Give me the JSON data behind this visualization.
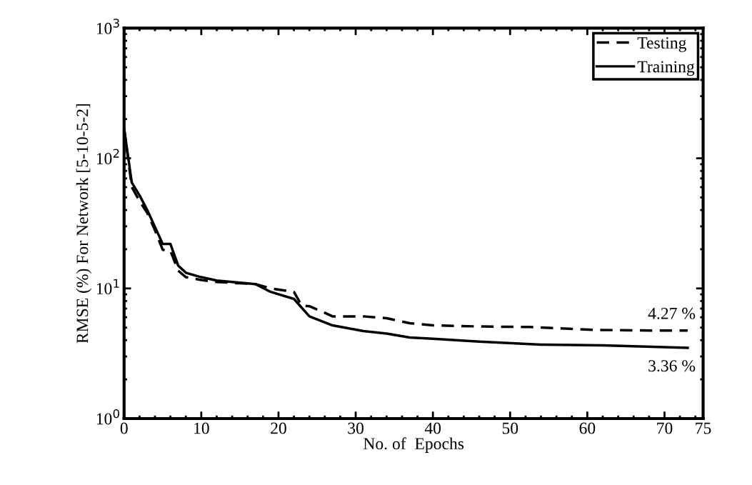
{
  "chart_data": {
    "type": "line",
    "xlabel": "No. of  Epochs",
    "ylabel": "RMSE (%) For Network [5-10-5-2]",
    "log": "y",
    "xlim": [
      0,
      75
    ],
    "xticks": [
      0,
      10,
      20,
      30,
      40,
      50,
      60,
      70,
      75
    ],
    "ylim": [
      1,
      1000
    ],
    "yticks": [
      {
        "value": 1,
        "label": "10$^{0}$"
      },
      {
        "value": 10,
        "label": "10$^{1}$"
      },
      {
        "value": 100,
        "label": "10$^{2}$"
      },
      {
        "value": 1000,
        "label": "10$^{3}$"
      }
    ],
    "grid": false,
    "legend": "top right",
    "marker": "none",
    "series": [
      {
        "name": "Testing",
        "color": "#000000",
        "line_style": "dashed",
        "x": [
          0,
          1,
          2,
          3,
          4,
          5,
          6,
          7,
          8,
          10,
          12,
          17,
          19,
          22,
          23,
          24,
          26,
          27,
          31,
          34,
          37,
          40,
          46,
          52.5,
          61,
          68,
          73
        ],
        "values": [
          170,
          60,
          47,
          38,
          28,
          19.8,
          19.5,
          13.7,
          12.2,
          11.6,
          11.2,
          10.8,
          10,
          9.4,
          7.4,
          7.3,
          6.5,
          6.1,
          6.1,
          5.9,
          5.4,
          5.2,
          5.1,
          5.05,
          4.8,
          4.75,
          4.75
        ]
      },
      {
        "name": "Training",
        "color": "#000000",
        "line_style": "solid",
        "x": [
          0,
          1,
          2,
          3,
          5,
          6,
          7,
          8,
          10,
          12,
          17,
          19,
          22,
          24,
          27,
          31,
          34,
          37,
          40,
          46,
          54,
          62,
          73
        ],
        "values": [
          170,
          65,
          52,
          40,
          22,
          22,
          15,
          13.2,
          12.2,
          11.5,
          10.8,
          9.4,
          8.3,
          6.1,
          5.2,
          4.7,
          4.5,
          4.2,
          4.1,
          3.9,
          3.7,
          3.65,
          3.5
        ]
      }
    ],
    "annotations": [
      {
        "text": "4.27 %",
        "x": 73,
        "y": 4.75
      },
      {
        "text": "3.36 %",
        "x": 73,
        "y": 3.5
      }
    ]
  }
}
